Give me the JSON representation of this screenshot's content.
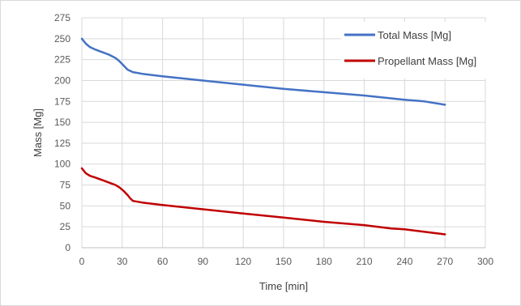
{
  "chart_data": {
    "type": "line",
    "xlabel": "Time [min]",
    "ylabel": "Mass [Mg]",
    "xlim": [
      0,
      300
    ],
    "ylim": [
      0,
      275
    ],
    "xticks": [
      0,
      30,
      60,
      90,
      120,
      150,
      180,
      210,
      240,
      270,
      300
    ],
    "yticks": [
      0,
      25,
      50,
      75,
      100,
      125,
      150,
      175,
      200,
      225,
      250,
      275
    ],
    "grid": true,
    "legend_position": "top-right",
    "series": [
      {
        "name": "Total Mass [Mg]",
        "color": "#4472C4",
        "points": [
          [
            0,
            250
          ],
          [
            3,
            244
          ],
          [
            6,
            240
          ],
          [
            10,
            237
          ],
          [
            15,
            234
          ],
          [
            20,
            231
          ],
          [
            25,
            227
          ],
          [
            28,
            223
          ],
          [
            31,
            218
          ],
          [
            34,
            213
          ],
          [
            38,
            210
          ],
          [
            45,
            208
          ],
          [
            60,
            205
          ],
          [
            90,
            200
          ],
          [
            120,
            195
          ],
          [
            150,
            190
          ],
          [
            180,
            186
          ],
          [
            210,
            182
          ],
          [
            240,
            177
          ],
          [
            255,
            175
          ],
          [
            270,
            171
          ]
        ]
      },
      {
        "name": "Propellant Mass [Mg]",
        "color": "#C00000",
        "points": [
          [
            0,
            95
          ],
          [
            3,
            89
          ],
          [
            6,
            86
          ],
          [
            10,
            84
          ],
          [
            15,
            81
          ],
          [
            20,
            78
          ],
          [
            25,
            75
          ],
          [
            28,
            72
          ],
          [
            31,
            68
          ],
          [
            34,
            63
          ],
          [
            36,
            59
          ],
          [
            38,
            56
          ],
          [
            45,
            54
          ],
          [
            60,
            51
          ],
          [
            90,
            46
          ],
          [
            120,
            41
          ],
          [
            150,
            36
          ],
          [
            180,
            31
          ],
          [
            210,
            27
          ],
          [
            230,
            23
          ],
          [
            240,
            22
          ],
          [
            255,
            19
          ],
          [
            270,
            16
          ]
        ]
      }
    ]
  }
}
